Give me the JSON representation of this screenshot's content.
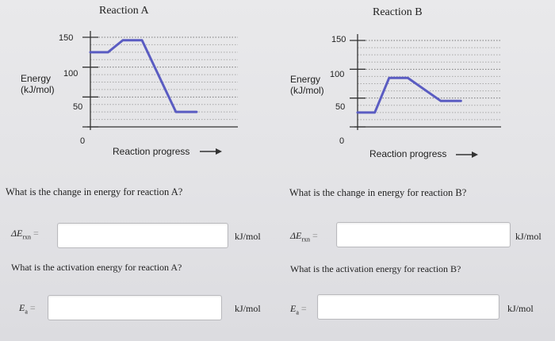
{
  "reaction_a": {
    "title": "Reaction A",
    "ylabel_line1": "Energy",
    "ylabel_line2": "(kJ/mol)",
    "ticks": [
      "150",
      "100",
      "50",
      "0"
    ],
    "xlabel": "Reaction progress",
    "question_change": "What is the change in energy for reaction A?",
    "delta_label": "ΔE",
    "delta_sub": "rxn",
    "unit": "kJ/mol",
    "question_activation": "What is the activation energy for reaction A?",
    "ea_label": "E",
    "ea_sub": "a",
    "delta_value": "",
    "ea_value": ""
  },
  "reaction_b": {
    "title": "Reaction B",
    "ylabel_line1": "Energy",
    "ylabel_line2": "(kJ/mol)",
    "ticks": [
      "150",
      "100",
      "50",
      "0"
    ],
    "xlabel": "Reaction progress",
    "question_change": "What is the change in energy for reaction B?",
    "delta_label": "ΔE",
    "delta_sub": "rxn",
    "unit": "kJ/mol",
    "question_activation": "What is the activation energy for reaction B?",
    "ea_label": "E",
    "ea_sub": "a",
    "delta_value": "",
    "ea_value": ""
  },
  "line_color": "#5a5cc2",
  "chart_data": [
    {
      "type": "line",
      "title": "Reaction A",
      "xlabel": "Reaction progress",
      "ylabel": "Energy (kJ/mol)",
      "ylim": [
        0,
        150
      ],
      "x": [
        0,
        0.12,
        0.22,
        0.35,
        0.58,
        0.72
      ],
      "y": [
        125,
        125,
        145,
        145,
        25,
        25
      ],
      "grid": true
    },
    {
      "type": "line",
      "title": "Reaction B",
      "xlabel": "Reaction progress",
      "ylabel": "Energy (kJ/mol)",
      "ylim": [
        0,
        150
      ],
      "x": [
        0,
        0.12,
        0.22,
        0.35,
        0.58,
        0.72
      ],
      "y": [
        25,
        25,
        85,
        85,
        45,
        45
      ],
      "grid": true
    }
  ]
}
